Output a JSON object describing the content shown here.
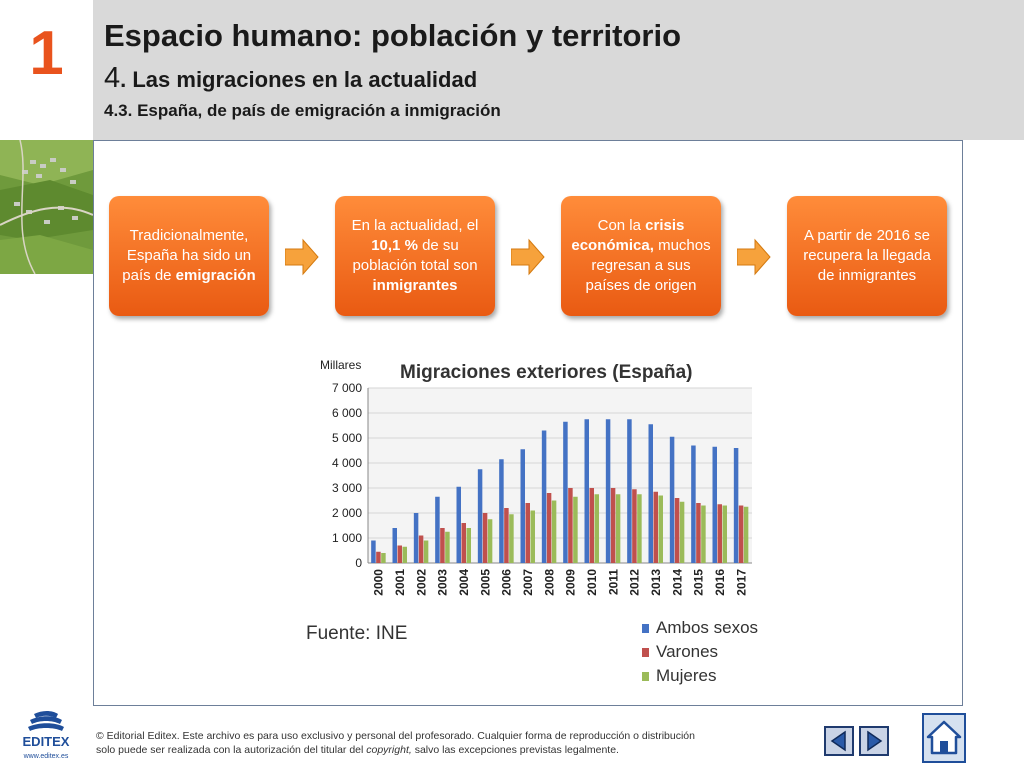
{
  "header": {
    "chapter_number": "1",
    "title": "Espacio humano: población y territorio",
    "section_number": "4",
    "section_title": ". Las migraciones en la actualidad",
    "subsection": "4.3. España, de país de emigración a inmigración"
  },
  "flow": [
    {
      "parts": [
        {
          "text": "Tradicionalmente, España ha sido un país de ",
          "bold": false
        },
        {
          "text": "emigración",
          "bold": true
        }
      ]
    },
    {
      "parts": [
        {
          "text": "En la actualidad, el ",
          "bold": false
        },
        {
          "text": "10,1 %",
          "bold": true
        },
        {
          "text": " de su población total son ",
          "bold": false
        },
        {
          "text": "inmigrantes",
          "bold": true
        }
      ]
    },
    {
      "parts": [
        {
          "text": "Con la ",
          "bold": false
        },
        {
          "text": "crisis económica,",
          "bold": true
        },
        {
          "text": " muchos regresan a sus países de origen",
          "bold": false
        }
      ]
    },
    {
      "parts": [
        {
          "text": "A partir de 2016 se recupera la llegada de inmigrantes",
          "bold": false
        }
      ]
    }
  ],
  "chart_data": {
    "type": "bar",
    "title": "Migraciones exteriores (España)",
    "ylabel": "Millares",
    "ylim": [
      0,
      7000
    ],
    "yticks": [
      "0",
      "1 000",
      "2 000",
      "3 000",
      "4 000",
      "5 000",
      "6 000",
      "7 000"
    ],
    "categories": [
      "2000",
      "2001",
      "2002",
      "2003",
      "2004",
      "2005",
      "2006",
      "2007",
      "2008",
      "2009",
      "2010",
      "2011",
      "2012",
      "2013",
      "2014",
      "2015",
      "2016",
      "2017"
    ],
    "series": [
      {
        "name": "Ambos sexos",
        "color": "#4472c4",
        "values": [
          900,
          1400,
          2000,
          2650,
          3050,
          3750,
          4150,
          4550,
          5300,
          5650,
          5750,
          5750,
          5750,
          5550,
          5050,
          4700,
          4650,
          4600
        ]
      },
      {
        "name": "Varones",
        "color": "#c0504d",
        "values": [
          450,
          700,
          1100,
          1400,
          1600,
          2000,
          2200,
          2400,
          2800,
          3000,
          3000,
          3000,
          2950,
          2850,
          2600,
          2400,
          2350,
          2300
        ]
      },
      {
        "name": "Mujeres",
        "color": "#9bbb59",
        "values": [
          400,
          650,
          900,
          1250,
          1400,
          1750,
          1950,
          2100,
          2500,
          2650,
          2750,
          2750,
          2750,
          2700,
          2450,
          2300,
          2300,
          2250
        ]
      }
    ],
    "source": "Fuente: INE",
    "grid": true,
    "legend_position": "bottom-right"
  },
  "footer": {
    "brand": "EDITEX",
    "website": "www.editex.es",
    "line1": "© Editorial Editex. Este archivo es para uso exclusivo y personal del profesorado. Cualquier forma de reproducción o distribución",
    "line2_a": "solo puede ser realizada con la autorización del titular del ",
    "line2_b": "copyright,",
    "line2_c": " salvo las excepciones previstas legalmente."
  },
  "icons": {
    "prev": "prev-arrow-icon",
    "next": "next-arrow-icon",
    "home": "home-icon"
  }
}
